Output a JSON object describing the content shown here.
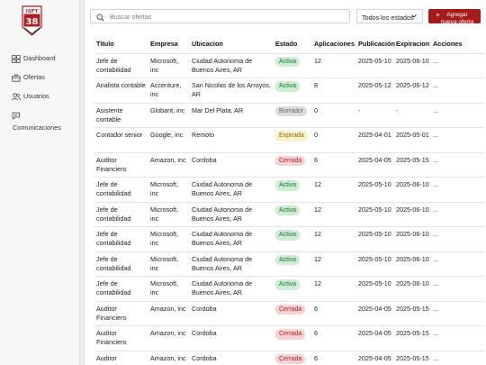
{
  "sidebar": {
    "logo_text": "ISFT 38",
    "items": [
      {
        "label": "Dashboard",
        "icon": "dashboard-icon"
      },
      {
        "label": "Ofertas",
        "icon": "briefcase-icon"
      },
      {
        "label": "Usuarios",
        "icon": "users-icon"
      },
      {
        "label": "Comunicaciones",
        "icon": "chat-icon"
      }
    ]
  },
  "toolbar": {
    "search_placeholder": "Buscar ofertas",
    "status_filter": "Todos los estados",
    "add_button": "Agregar nueva oferta"
  },
  "table": {
    "columns": [
      "Titulo",
      "Empresa",
      "Ubicacion",
      "Estado",
      "Aplicaciones",
      "Publicación",
      "Expiracion",
      "Acciones"
    ],
    "rows": [
      {
        "titulo": "Jefe de contabilidad",
        "empresa": "Microsoft, inc",
        "ubicacion": "Ciudad Autonoma de Buenos Aires, AR",
        "estado": "Activa",
        "aplicaciones": "12",
        "publicacion": "2025-05-10",
        "expiracion": "2025-06-10",
        "acciones": "..."
      },
      {
        "titulo": "Analista contable",
        "empresa": "Accenture, inc",
        "ubicacion": "San Nicolas de los Arroyos, AR",
        "estado": "Activa",
        "aplicaciones": "8",
        "publicacion": "2025-05-12",
        "expiracion": "2025-06-12",
        "acciones": "..."
      },
      {
        "titulo": "Asistente contable",
        "empresa": "Globant, inc",
        "ubicacion": "Mar Del Plata, AR",
        "estado": "Borrador",
        "aplicaciones": "0",
        "publicacion": "-",
        "expiracion": "-",
        "acciones": "..."
      },
      {
        "titulo": "Contador senior",
        "empresa": "Google, inc",
        "ubicacion": "Remoto",
        "estado": "Expirada",
        "aplicaciones": "0",
        "publicacion": "2025-04-01",
        "expiracion": "2025-05-01",
        "acciones": "..."
      },
      {
        "titulo": "Auditor Financiero",
        "empresa": "Amazon, inc",
        "ubicacion": "Cordoba",
        "estado": "Cerrada",
        "aplicaciones": "6",
        "publicacion": "2025-04-05",
        "expiracion": "2025-05-15",
        "acciones": "..."
      },
      {
        "titulo": "Jefe de contabilidad",
        "empresa": "Microsoft, inc",
        "ubicacion": "Ciudad Autonoma de Buenos Aires, AR",
        "estado": "Activa",
        "aplicaciones": "12",
        "publicacion": "2025-05-10",
        "expiracion": "2025-06-10",
        "acciones": "..."
      },
      {
        "titulo": "Jefe de contabilidad",
        "empresa": "Microsoft, inc",
        "ubicacion": "Ciudad Autonoma de Buenos Aires, AR",
        "estado": "Activa",
        "aplicaciones": "12",
        "publicacion": "2025-05-10",
        "expiracion": "2025-06-10",
        "acciones": "..."
      },
      {
        "titulo": "Jefe de contabilidad",
        "empresa": "Microsoft, inc",
        "ubicacion": "Ciudad Autonoma de Buenos Aires, AR",
        "estado": "Activa",
        "aplicaciones": "12",
        "publicacion": "2025-05-10",
        "expiracion": "2025-06-10",
        "acciones": "..."
      },
      {
        "titulo": "Jefe de contabilidad",
        "empresa": "Microsoft, inc",
        "ubicacion": "Ciudad Autonoma de Buenos Aires, AR",
        "estado": "Activa",
        "aplicaciones": "12",
        "publicacion": "2025-05-10",
        "expiracion": "2025-06-10",
        "acciones": "..."
      },
      {
        "titulo": "Jefe de contabilidad",
        "empresa": "Microsoft, inc",
        "ubicacion": "Ciudad Autonoma de Buenos Aires, AR",
        "estado": "Activa",
        "aplicaciones": "12",
        "publicacion": "2025-05-10",
        "expiracion": "2025-06-10",
        "acciones": "..."
      },
      {
        "titulo": "Auditor Financiero",
        "empresa": "Amazon, inc",
        "ubicacion": "Cordoba",
        "estado": "Cerrada",
        "aplicaciones": "6",
        "publicacion": "2025-04-05",
        "expiracion": "2025-05-15",
        "acciones": "..."
      },
      {
        "titulo": "Auditor Financiero",
        "empresa": "Amazon, inc",
        "ubicacion": "Cordoba",
        "estado": "Cerrada",
        "aplicaciones": "6",
        "publicacion": "2025-04-05",
        "expiracion": "2025-05-15",
        "acciones": "..."
      },
      {
        "titulo": "Auditor Financiero",
        "empresa": "Amazon, inc",
        "ubicacion": "Cordoba",
        "estado": "Cerrada",
        "aplicaciones": "6",
        "publicacion": "2025-04-05",
        "expiracion": "2025-05-15",
        "acciones": "..."
      }
    ]
  },
  "status_styles": {
    "Activa": {
      "bg": "#cdeed5",
      "fg": "#1f6d33"
    },
    "Borrador": {
      "bg": "#dcdcdc",
      "fg": "#666666"
    },
    "Expirada": {
      "bg": "#fbf1c8",
      "fg": "#8a6a12"
    },
    "Cerrada": {
      "bg": "#f8d2d2",
      "fg": "#a12a2a"
    }
  },
  "colors": {
    "accent": "#a71a1a"
  }
}
